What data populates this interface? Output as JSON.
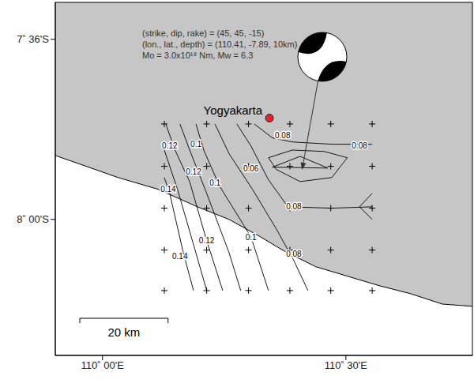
{
  "chart_data": {
    "type": "contour",
    "xlim": [
      109.903,
      110.76
    ],
    "ylim": [
      -8.302,
      -7.518
    ],
    "xticks": [
      {
        "value": 110,
        "label": "110˚ 00'E"
      },
      {
        "value": 110.5,
        "label": "110˚ 30'E"
      }
    ],
    "yticks": [
      {
        "value": -8,
        "label": "8˚ 00'S"
      },
      {
        "value": -7.6,
        "label": "7˚ 36'S"
      }
    ],
    "coastline": {
      "x": [
        109.903,
        110.032,
        110.114,
        110.195,
        110.26,
        110.325,
        110.373,
        110.438,
        110.503,
        110.568,
        110.633,
        110.698,
        110.76
      ],
      "y": [
        -7.858,
        -7.907,
        -7.933,
        -7.972,
        -8.0,
        -8.039,
        -8.07,
        -8.105,
        -8.126,
        -8.147,
        -8.165,
        -8.188,
        -8.193
      ]
    },
    "contours": [
      {
        "x": [
          110.127,
          110.138,
          110.166,
          110.187
        ],
        "y": [
          -7.907,
          -7.942,
          -8.074,
          -8.158
        ]
      },
      {
        "x": [
          110.127,
          110.154,
          110.187,
          110.214
        ],
        "y": [
          -7.846,
          -7.933,
          -8.056,
          -8.158
        ]
      },
      {
        "x": [
          110.13,
          110.149,
          110.179,
          110.214,
          110.247
        ],
        "y": [
          -7.788,
          -7.846,
          -7.916,
          -8.047,
          -8.158
        ]
      },
      {
        "x": [
          110.159,
          110.182,
          110.214,
          110.26,
          110.284
        ],
        "y": [
          -7.788,
          -7.854,
          -7.942,
          -8.074,
          -8.158
        ]
      },
      {
        "x": [
          110.192,
          110.208,
          110.24,
          110.305,
          110.341
        ],
        "y": [
          -7.788,
          -7.846,
          -7.925,
          -8.039,
          -8.158
        ]
      },
      {
        "x": [
          110.231,
          110.26,
          110.308,
          110.357,
          110.393,
          110.422
        ],
        "y": [
          -7.788,
          -7.854,
          -7.933,
          -8.021,
          -8.091,
          -8.158
        ]
      },
      {
        "x": [
          110.276,
          110.305,
          110.341,
          110.381,
          110.471,
          110.554
        ],
        "y": [
          -7.788,
          -7.837,
          -7.912,
          -7.972,
          -7.975,
          -7.972
        ]
      },
      {
        "x": [
          110.312,
          110.349,
          110.39,
          110.471,
          110.554
        ],
        "y": [
          -7.788,
          -7.819,
          -7.828,
          -7.833,
          -7.833
        ]
      },
      {
        "x": [
          110.341,
          110.39,
          110.455,
          110.503,
          110.471,
          110.406,
          110.357,
          110.341
        ],
        "y": [
          -7.863,
          -7.846,
          -7.849,
          -7.863,
          -7.907,
          -7.916,
          -7.889,
          -7.863
        ]
      },
      {
        "x": [
          110.349,
          110.406,
          110.463,
          110.349
        ],
        "y": [
          -7.884,
          -7.86,
          -7.886,
          -7.884
        ]
      },
      {
        "x": [
          110.554,
          110.528,
          110.554
        ],
        "y": [
          -7.942,
          -7.972,
          -8.0
        ]
      }
    ],
    "contour_labels": [
      {
        "text": "0.12",
        "x": 110.138,
        "y": -7.837
      },
      {
        "text": "0.1",
        "x": 110.192,
        "y": -7.832
      },
      {
        "text": "0.14",
        "x": 110.135,
        "y": -7.933
      },
      {
        "text": "0.12",
        "x": 110.187,
        "y": -7.895
      },
      {
        "text": "0.1",
        "x": 110.231,
        "y": -7.919
      },
      {
        "text": "0.06",
        "x": 110.305,
        "y": -7.888
      },
      {
        "text": "0.08",
        "x": 110.37,
        "y": -7.814
      },
      {
        "text": "0.08",
        "x": 110.528,
        "y": -7.837
      },
      {
        "text": "0.08",
        "x": 110.393,
        "y": -7.972
      },
      {
        "text": "0.14",
        "x": 110.159,
        "y": -8.082
      },
      {
        "text": "0.12",
        "x": 110.214,
        "y": -8.047
      },
      {
        "text": "0.1",
        "x": 110.305,
        "y": -8.039
      },
      {
        "text": "0.08",
        "x": 110.393,
        "y": -8.077
      }
    ],
    "grid_nodes": {
      "x": [
        110.127,
        110.214,
        110.3,
        110.385,
        110.469,
        110.554
      ],
      "y": [
        -7.788,
        -7.882,
        -7.975,
        -8.068,
        -8.158
      ],
      "marker": "+"
    },
    "city": {
      "name": "Yogyakarta",
      "x": 110.343,
      "y": -7.775,
      "color": "#e8262a"
    },
    "focal_mechanism": {
      "lines": [
        "(strike, dip, rake) = (45, 45, -15)",
        "(lon., lat., depth) = (110.41, -7.89, 10km)",
        "Mo = 3.0x10¹⁸ Nm, Mw = 6.3"
      ],
      "epicenter": {
        "x": 110.41,
        "y": -7.89
      }
    },
    "scale_bar": {
      "label": "20 km",
      "length_km": 20
    }
  }
}
